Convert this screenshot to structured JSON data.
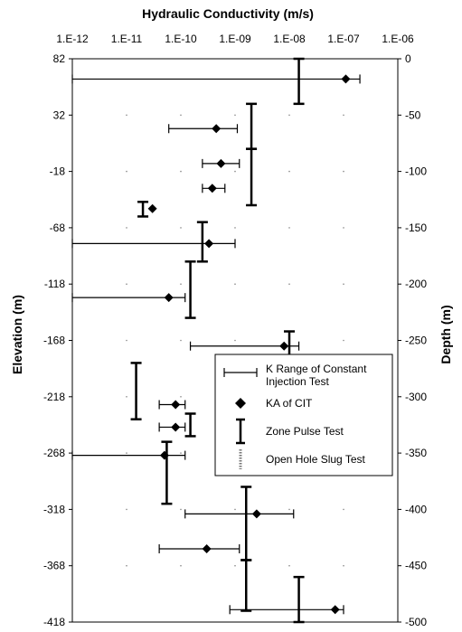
{
  "chart_data": {
    "type": "scatter",
    "title": "Hydraulic Conductivity (m/s)",
    "x_scale": "log",
    "x_ticks": [
      "1.E-12",
      "1.E-11",
      "1.E-10",
      "1.E-09",
      "1.E-08",
      "1.E-07",
      "1.E-06"
    ],
    "xlim": [
      1e-12,
      1e-06
    ],
    "ylabel_left": "Elevation (m)",
    "y_ticks_left": [
      "82",
      "32",
      "-18",
      "-68",
      "-118",
      "-168",
      "-218",
      "-268",
      "-318",
      "-368",
      "-418"
    ],
    "ylabel_right": "Depth (m)",
    "y_ticks_right": [
      "0",
      "-50",
      "-100",
      "-150",
      "-200",
      "-250",
      "-300",
      "-350",
      "-400",
      "-450",
      "-500"
    ],
    "ylim_depth": [
      0,
      -500
    ],
    "legend": [
      {
        "symbol": "range",
        "text": "K Range of Constant Injection Test"
      },
      {
        "symbol": "diamond",
        "text": "KA of CIT"
      },
      {
        "symbol": "ibar",
        "text": "Zone Pulse Test"
      },
      {
        "symbol": "slug",
        "text": "Open Hole Slug Test"
      }
    ],
    "cit": [
      {
        "depth": -18,
        "ka": 1.1e-07,
        "k_min": 1e-12,
        "k_max": 2e-07
      },
      {
        "depth": -62,
        "ka": 4.5e-10,
        "k_min": 6e-11,
        "k_max": 1.1e-09
      },
      {
        "depth": -93,
        "ka": 5.5e-10,
        "k_min": 2.5e-10,
        "k_max": 1.2e-09
      },
      {
        "depth": -115,
        "ka": 3.8e-10,
        "k_min": 2.5e-10,
        "k_max": 6.5e-10
      },
      {
        "depth": -133,
        "ka": 3e-11,
        "k_min": null,
        "k_max": null
      },
      {
        "depth": -164,
        "ka": 3.3e-10,
        "k_min": 1e-12,
        "k_max": 1e-09
      },
      {
        "depth": -212,
        "ka": 6e-11,
        "k_min": 1e-12,
        "k_max": 1.2e-10
      },
      {
        "depth": -255,
        "ka": 8e-09,
        "k_min": 1.5e-10,
        "k_max": 1.5e-08
      },
      {
        "depth": -307,
        "ka": 8e-11,
        "k_min": 4e-11,
        "k_max": 1.2e-10
      },
      {
        "depth": -327,
        "ka": 8e-11,
        "k_min": 4e-11,
        "k_max": 1.2e-10
      },
      {
        "depth": -352,
        "ka": 5e-11,
        "k_min": 1e-12,
        "k_max": 1.2e-10
      },
      {
        "depth": -404,
        "ka": 2.5e-09,
        "k_min": 1.2e-10,
        "k_max": 1.2e-08
      },
      {
        "depth": -435,
        "ka": 3e-10,
        "k_min": 4e-11,
        "k_max": 1.2e-09
      },
      {
        "depth": -489,
        "ka": 7e-08,
        "k_min": 8e-10,
        "k_max": 1e-07
      }
    ],
    "pulse": [
      {
        "k": 1.5e-08,
        "depth_top": 0,
        "depth_bottom": -40
      },
      {
        "k": 2e-09,
        "depth_top": -40,
        "depth_bottom": -80
      },
      {
        "k": 2e-09,
        "depth_top": -80,
        "depth_bottom": -130
      },
      {
        "k": 2e-11,
        "depth_top": -127,
        "depth_bottom": -140
      },
      {
        "k": 2.5e-10,
        "depth_top": -145,
        "depth_bottom": -180
      },
      {
        "k": 1.5e-10,
        "depth_top": -180,
        "depth_bottom": -230
      },
      {
        "k": 1e-08,
        "depth_top": -242,
        "depth_bottom": -268
      },
      {
        "k": 1.5e-11,
        "depth_top": -270,
        "depth_bottom": -320
      },
      {
        "k": 1.5e-10,
        "depth_top": -315,
        "depth_bottom": -335
      },
      {
        "k": 5.5e-11,
        "depth_top": -340,
        "depth_bottom": -395
      },
      {
        "k": 1.6e-09,
        "depth_top": -380,
        "depth_bottom": -445
      },
      {
        "k": 1.6e-09,
        "depth_top": -445,
        "depth_bottom": -490
      },
      {
        "k": 1.5e-08,
        "depth_top": -460,
        "depth_bottom": -500
      }
    ],
    "grid": false
  }
}
